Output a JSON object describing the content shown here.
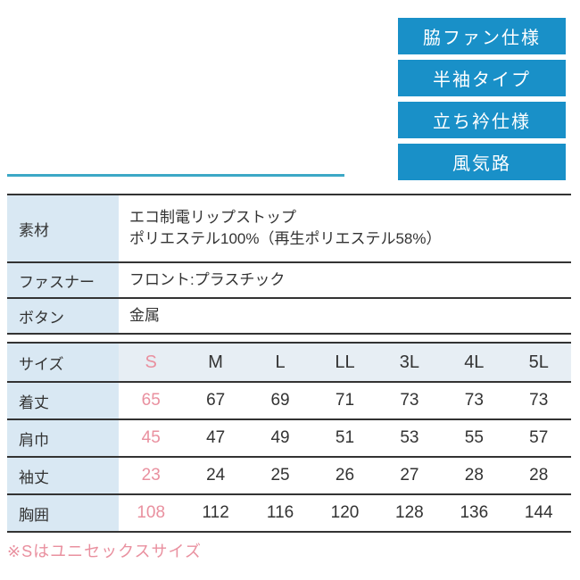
{
  "badges": [
    {
      "label": "脇ファン仕様"
    },
    {
      "label": "半袖タイプ"
    },
    {
      "label": "立ち衿仕様"
    },
    {
      "label": "風気路"
    }
  ],
  "spec_table": {
    "rows": [
      {
        "label": "素材",
        "lines": [
          "エコ制電リップストップ",
          "ポリエステル100%（再生ポリエステル58%）"
        ]
      },
      {
        "label": "ファスナー",
        "lines": [
          "フロント:プラスチック"
        ]
      },
      {
        "label": "ボタン",
        "lines": [
          "金属"
        ]
      }
    ]
  },
  "size_table": {
    "header_label": "サイズ",
    "sizes": [
      "S",
      "M",
      "L",
      "LL",
      "3L",
      "4L",
      "5L"
    ],
    "highlighted_size": "S",
    "rows": [
      {
        "label": "着丈",
        "values": [
          "65",
          "67",
          "69",
          "71",
          "73",
          "73",
          "73"
        ]
      },
      {
        "label": "肩巾",
        "values": [
          "45",
          "47",
          "49",
          "51",
          "53",
          "55",
          "57"
        ]
      },
      {
        "label": "袖丈",
        "values": [
          "23",
          "24",
          "25",
          "26",
          "27",
          "28",
          "28"
        ]
      },
      {
        "label": "胸囲",
        "values": [
          "108",
          "112",
          "116",
          "120",
          "128",
          "136",
          "144"
        ]
      }
    ]
  },
  "note": "※Sはユニセックスサイズ",
  "colors": {
    "badge_blue": "#1990C8",
    "accent_teal": "#3CA8C6",
    "label_bg": "#D9E8F3",
    "header_row_bg": "#E7EEF4",
    "highlight_pink": "#E9909F",
    "border": "#333333",
    "text": "#333333"
  }
}
